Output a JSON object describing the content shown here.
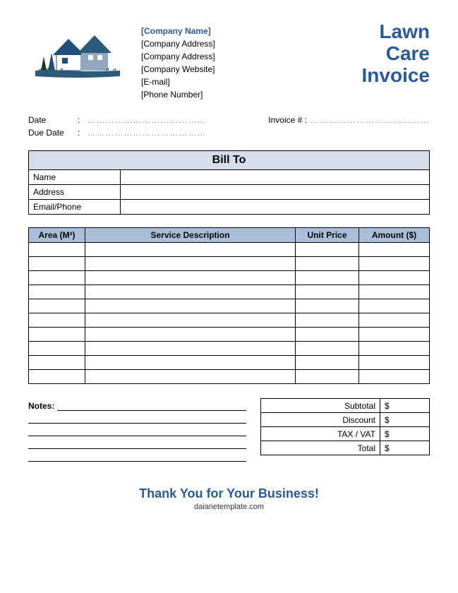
{
  "colors": {
    "brand_blue": "#2a5a9a",
    "header_bg_light": "#d4dde9",
    "header_bg_mid": "#a9bfd9",
    "border": "#000000",
    "text": "#000000",
    "dotted": "#888888",
    "logo_roof": "#1f4e79",
    "logo_wall": "#8fa7bf",
    "logo_grass": "#2d5a7a",
    "logo_tree": "#173a1a"
  },
  "header": {
    "company_name": "[Company Name]",
    "lines": [
      "[Company Address]",
      "[Company Address]",
      "[Company Website]",
      "[E-mail]",
      "[Phone Number]"
    ],
    "title_lines": [
      "Lawn",
      "Care",
      "Invoice"
    ]
  },
  "meta": {
    "date_label": "Date",
    "due_date_label": "Due Date",
    "invoice_num_label": "Invoice # :",
    "dots": "…………………………………"
  },
  "billto": {
    "header": "Bill To",
    "rows": [
      {
        "label": "Name",
        "value": ""
      },
      {
        "label": "Address",
        "value": ""
      },
      {
        "label": "Email/Phone",
        "value": ""
      }
    ]
  },
  "services": {
    "columns": [
      "Area (M²)",
      "Service Description",
      "Unit Price",
      "Amount ($)"
    ],
    "row_count": 10,
    "rows": [
      [
        "",
        "",
        "",
        ""
      ],
      [
        "",
        "",
        "",
        ""
      ],
      [
        "",
        "",
        "",
        ""
      ],
      [
        "",
        "",
        "",
        ""
      ],
      [
        "",
        "",
        "",
        ""
      ],
      [
        "",
        "",
        "",
        ""
      ],
      [
        "",
        "",
        "",
        ""
      ],
      [
        "",
        "",
        "",
        ""
      ],
      [
        "",
        "",
        "",
        ""
      ],
      [
        "",
        "",
        "",
        ""
      ]
    ]
  },
  "notes": {
    "label": "Notes:",
    "line_count": 4
  },
  "totals": {
    "rows": [
      {
        "label": "Subtotal",
        "value": "$"
      },
      {
        "label": "Discount",
        "value": "$"
      },
      {
        "label": "TAX / VAT",
        "value": "$"
      },
      {
        "label": "Total",
        "value": "$"
      }
    ]
  },
  "footer": {
    "thankyou": "Thank You for Your Business!",
    "site": "daianetemplate.com"
  }
}
